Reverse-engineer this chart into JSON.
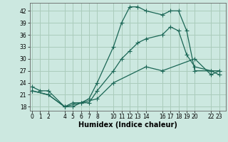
{
  "xlabel": "Humidex (Indice chaleur)",
  "bg_color": "#cce8e0",
  "grid_color": "#aaccbb",
  "line_color": "#1a6655",
  "series": [
    {
      "x": [
        0,
        1,
        2,
        4,
        5,
        6,
        7,
        8,
        10,
        11,
        12,
        13,
        14,
        16,
        17,
        18,
        19,
        20,
        22,
        23
      ],
      "y": [
        23,
        22,
        22,
        18,
        19,
        19,
        20,
        24,
        33,
        39,
        43,
        43,
        42,
        41,
        42,
        42,
        37,
        27,
        27,
        26
      ]
    },
    {
      "x": [
        0,
        2,
        4,
        5,
        6,
        7,
        8,
        10,
        11,
        12,
        13,
        14,
        16,
        17,
        18,
        19,
        20,
        22,
        23
      ],
      "y": [
        22,
        21,
        18,
        18,
        19,
        19,
        22,
        27,
        30,
        32,
        34,
        35,
        36,
        38,
        37,
        31,
        28,
        27,
        27
      ]
    },
    {
      "x": [
        0,
        2,
        4,
        8,
        10,
        14,
        16,
        20,
        22,
        23
      ],
      "y": [
        22,
        21,
        18,
        20,
        24,
        28,
        27,
        30,
        26,
        27
      ]
    }
  ],
  "xlim": [
    -0.3,
    23.8
  ],
  "ylim": [
    17,
    44
  ],
  "yticks": [
    18,
    21,
    24,
    27,
    30,
    33,
    36,
    39,
    42
  ],
  "xticks": [
    0,
    1,
    2,
    4,
    5,
    6,
    7,
    8,
    10,
    11,
    12,
    13,
    14,
    16,
    17,
    18,
    19,
    20,
    22,
    23
  ],
  "xlabel_fontsize": 7,
  "tick_fontsize": 5.5,
  "line_width": 0.9,
  "marker_size": 2.2
}
